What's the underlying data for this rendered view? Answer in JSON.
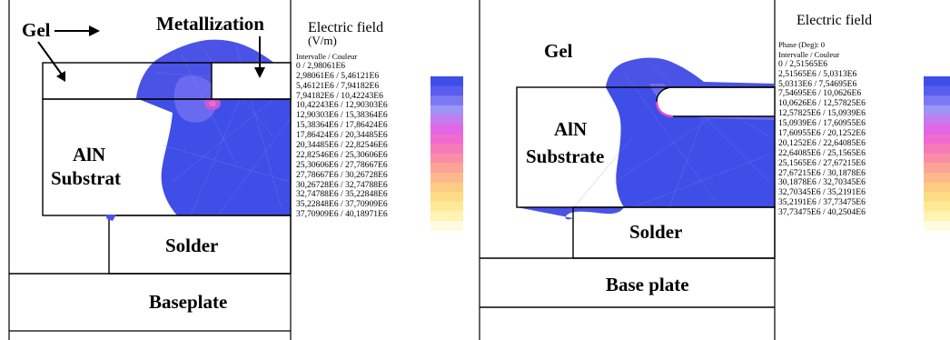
{
  "left": {
    "labels": {
      "gel": "Gel",
      "metallization": "Metallization",
      "electric_field": "Electric field",
      "electric_field_unit": "(V/m)",
      "substrate_line1": "AlN",
      "substrate_line2": "Substrat",
      "solder": "Solder",
      "baseplate": "Baseplate"
    },
    "legend": {
      "header": "Intervalle / Couleur",
      "rows": [
        "0 / 2,98061E6",
        "2,98061E6 / 5,46121E6",
        "5,46121E6 / 7,94182E6",
        "7,94182E6 / 10,42243E6",
        "10,42243E6 / 12,90303E6",
        "12,90303E6 / 15,38364E6",
        "15,38364E6 / 17,86424E6",
        "17,86424E6 / 20,34485E6",
        "20,34485E6 / 22,82546E6",
        "22,82546E6 / 25,30606E6",
        "25,30606E6 / 27,78667E6",
        "27,78667E6 / 30,26728E6",
        "30,26728E6 / 32,74788E6",
        "32,74788E6 / 35,22848E6",
        "35,22848E6 / 37,70909E6",
        "37,70909E6 / 40,18971E6"
      ]
    }
  },
  "right": {
    "labels": {
      "gel": "Gel",
      "electric_field": "Electric field",
      "substrate_line1": "AlN",
      "substrate_line2": "Substrate",
      "solder": "Solder",
      "baseplate": "Base plate"
    },
    "legend": {
      "phase": "Phase (Deg): 0",
      "header": "Intervalle / Couleur",
      "rows": [
        "0 / 2,51565E6",
        "2,51565E6 / 5,0313E6",
        "5,0313E6 / 7,54695E6",
        "7,54695E6 / 10,0626E6",
        "10,0626E6 / 12,57825E6",
        "12,57825E6 / 15,0939E6",
        "15,0939E6 / 17,60955E6",
        "17,60955E6 / 20,1252E6",
        "20,1252E6 / 22,64085E6",
        "22,64085E6 / 25,1565E6",
        "25,1565E6 / 27,67215E6",
        "27,67215E6 / 30,1878E6",
        "30,1878E6 / 32,70345E6",
        "32,70345E6 / 35,2191E6",
        "35,2191E6 / 37,73475E6",
        "37,73475E6 / 40,2504E6"
      ]
    }
  },
  "colors": {
    "field_low": "#3f4ee0",
    "field_mid": "#5b63ec",
    "field_high": "#d944d9",
    "outline": "#000000",
    "scale": [
      "#3e4fe8",
      "#5a5cf0",
      "#7a78f2",
      "#9b95f5",
      "#c57bf0",
      "#e167e6",
      "#f06ad0",
      "#f77ab8",
      "#f98fa6",
      "#fba495",
      "#fcb98b",
      "#fdcc84",
      "#fedc86",
      "#feea96",
      "#fff3b4",
      "#fffbe0"
    ]
  }
}
